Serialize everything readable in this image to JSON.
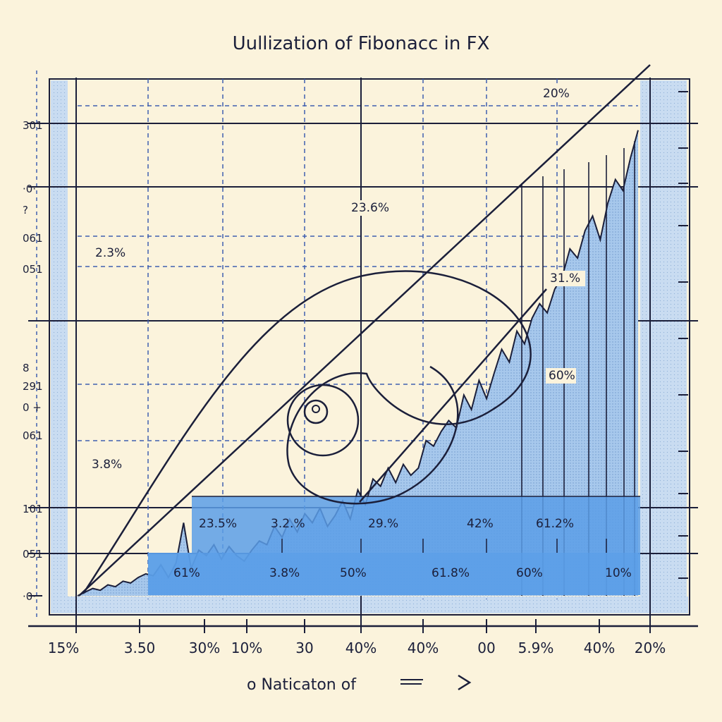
{
  "chart_data": {
    "type": "area",
    "title": "Uullization of Fibonacc in FX",
    "xlabel": "o Naticaton of",
    "x_tick_labels": [
      "15%",
      "3.50",
      "30%",
      "10%",
      "30",
      "40%",
      "40%",
      "00",
      "5.9%",
      "40%",
      "20%"
    ],
    "y_tick_labels": [
      "301",
      "·0·",
      "?",
      "061",
      "051",
      "8",
      "291",
      "0 +",
      "061",
      "101",
      "051",
      "·0·"
    ],
    "level_labels": [
      "20%",
      "23.6%",
      "2.3%",
      "31.%",
      "60%",
      "3.8%"
    ],
    "band_upper_labels": [
      "23.5%",
      "3.2.%",
      "29.%",
      "42%",
      "61.2%"
    ],
    "band_lower_labels": [
      "61%",
      "3.8%",
      "50%",
      "61.8%",
      "60%",
      "10%"
    ],
    "series": [
      {
        "x": [
          0,
          1.5,
          3,
          4.5,
          6,
          7.5,
          9,
          10.5,
          12,
          13.5,
          15,
          16.5,
          18,
          19.5,
          21,
          22.5,
          24,
          25.5,
          27,
          28.5,
          30,
          31.5,
          33,
          34.5,
          36,
          37.5,
          39,
          40.5,
          42,
          43.5,
          45,
          46.5,
          48,
          49.5,
          51,
          52.5,
          54,
          55.5,
          57,
          58.5,
          60,
          61.5,
          63,
          64.5,
          66,
          67.5,
          69,
          70.5,
          72,
          73.5,
          75,
          76.5,
          78,
          79.5,
          81,
          82.5,
          84,
          85.5,
          87,
          88.5,
          90,
          91.5,
          93,
          94.5,
          96,
          97.5,
          99,
          100.5,
          102,
          103.5,
          105,
          106.5,
          108,
          109.5,
          111
        ],
        "values": [
          0,
          2,
          4,
          3,
          6,
          5,
          8,
          7,
          10,
          12,
          11,
          17,
          10,
          18,
          40,
          15,
          25,
          22,
          28,
          20,
          27,
          22,
          19,
          25,
          30,
          28,
          38,
          32,
          42,
          35,
          45,
          40,
          48,
          38,
          44,
          52,
          42,
          58,
          50,
          64,
          60,
          70,
          62,
          72,
          66,
          70,
          85,
          82,
          90,
          96,
          92,
          110,
          102,
          118,
          108,
          122,
          135,
          128,
          145,
          138,
          152,
          160,
          155,
          168,
          175,
          190,
          185,
          200,
          208,
          195,
          215,
          228,
          222,
          240,
          255
        ]
      }
    ],
    "xlim": [
      0,
      111
    ],
    "ylim": [
      0,
      280
    ],
    "grid": true,
    "colors": {
      "fill": "#9cc3ec",
      "band": "#5a9ee8",
      "ink": "#1b1f3a",
      "grid_dash": "#3f5fb0",
      "background": "#fbf3dc"
    }
  }
}
